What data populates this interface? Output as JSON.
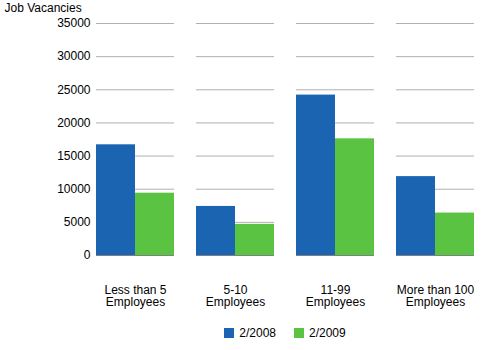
{
  "chart_data": {
    "type": "bar",
    "y_label": "Job Vacancies",
    "categories": [
      "Less than 5\nEmployees",
      "5-10\nEmployees",
      "11-99\nEmployees",
      "More than 100\nEmployees"
    ],
    "series": [
      {
        "name": "2/2008",
        "color": "#1a64b2",
        "values": [
          16700,
          7400,
          24200,
          11900
        ]
      },
      {
        "name": "2/2009",
        "color": "#5ac341",
        "values": [
          9400,
          4700,
          17600,
          6400
        ]
      }
    ],
    "ylim": [
      0,
      35000
    ],
    "yticks": [
      0,
      5000,
      10000,
      15000,
      20000,
      25000,
      30000,
      35000
    ],
    "grid": true,
    "legend": "bottom"
  }
}
